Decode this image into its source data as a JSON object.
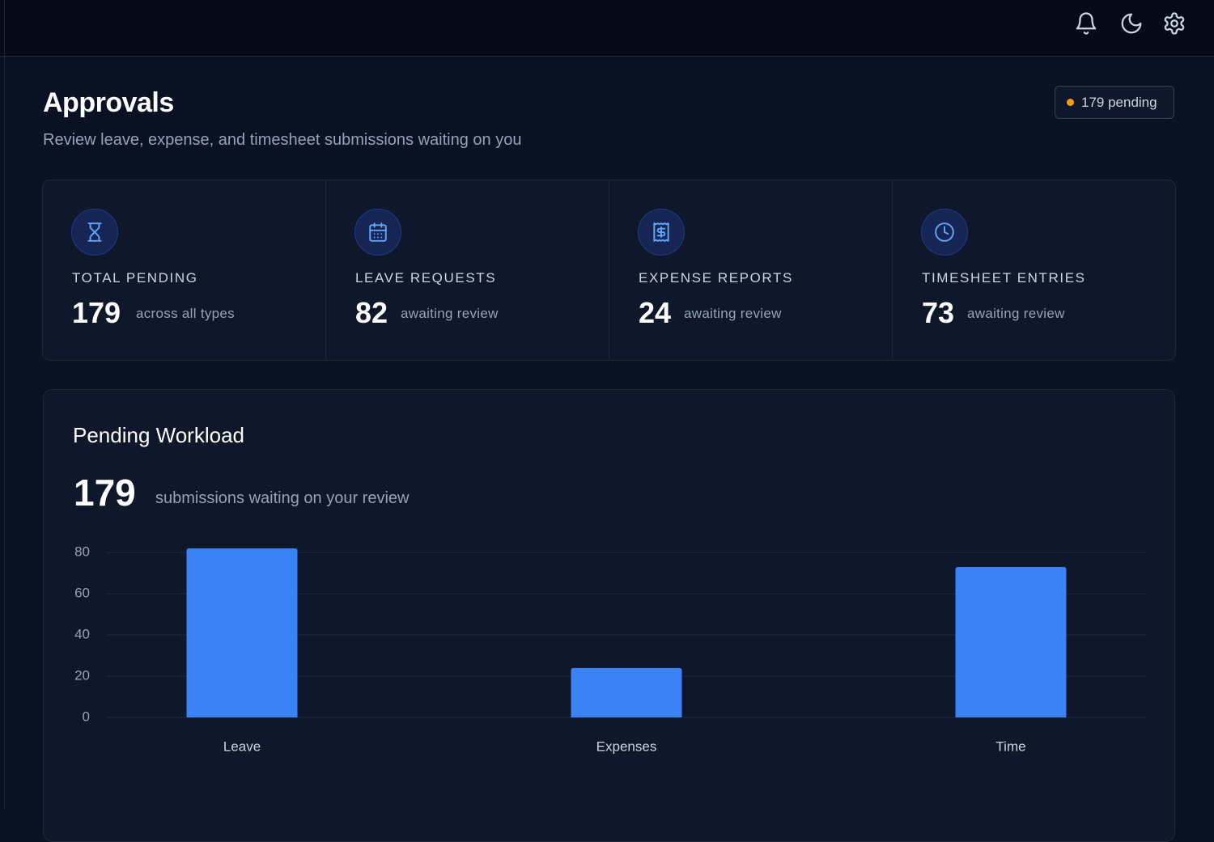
{
  "header": {
    "title": "Approvals",
    "subtitle": "Review leave, expense, and timesheet submissions waiting on you",
    "badge": "179 pending"
  },
  "stats": [
    {
      "label": "TOTAL PENDING",
      "value": 179,
      "note": "across all types"
    },
    {
      "label": "LEAVE REQUESTS",
      "value": 82,
      "note": "awaiting review"
    },
    {
      "label": "EXPENSE REPORTS",
      "value": 24,
      "note": "awaiting review"
    },
    {
      "label": "TIMESHEET ENTRIES",
      "value": 73,
      "note": "awaiting review"
    }
  ],
  "workload": {
    "title": "Pending Workload",
    "total": 179,
    "caption": "submissions waiting on your review"
  },
  "chart_data": {
    "type": "bar",
    "categories": [
      "Leave",
      "Expenses",
      "Time"
    ],
    "values": [
      82,
      24,
      73
    ],
    "color": "#3b82f6",
    "ylim": [
      0,
      82
    ],
    "yticks": [
      0,
      20,
      40,
      60,
      80
    ],
    "grid": true
  }
}
